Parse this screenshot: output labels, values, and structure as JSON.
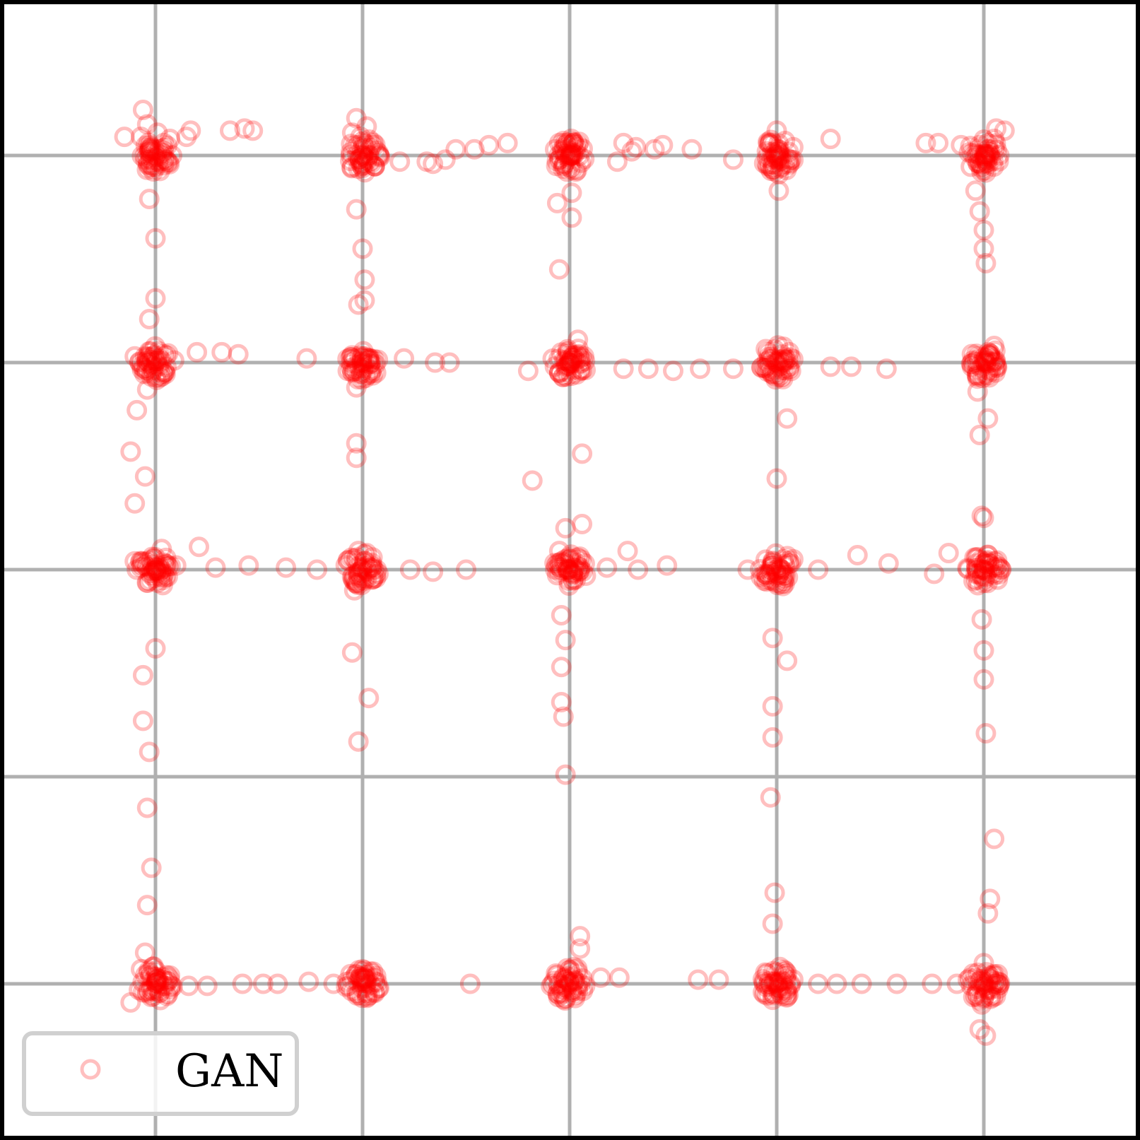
{
  "chart_data": {
    "type": "scatter",
    "title": "",
    "xlabel": "",
    "ylabel": "",
    "xlim": [
      -3.75,
      3.75
    ],
    "ylim": [
      -3.75,
      3.75
    ],
    "grid": true,
    "grid_lines": [
      -3,
      -2,
      -1,
      0,
      1,
      2,
      3
    ],
    "tick_labels_shown": false,
    "legend": {
      "placement": "bottom-left",
      "entries": [
        "GAN"
      ]
    },
    "series": [
      {
        "name": "GAN",
        "color": "#ff0000",
        "marker": "hollow-circle",
        "cluster_centers": [
          [
            -2,
            2
          ],
          [
            -1,
            2
          ],
          [
            0,
            2
          ],
          [
            1,
            2
          ],
          [
            2,
            2
          ],
          [
            -2,
            1
          ],
          [
            -1,
            1
          ],
          [
            0,
            1
          ],
          [
            1,
            1
          ],
          [
            2,
            1
          ],
          [
            -2,
            0
          ],
          [
            -1,
            0
          ],
          [
            0,
            0
          ],
          [
            1,
            0
          ],
          [
            2,
            0
          ],
          [
            -2,
            -2
          ],
          [
            -1,
            -2
          ],
          [
            0,
            -2
          ],
          [
            1,
            -2
          ],
          [
            2,
            -2
          ]
        ],
        "points": [
          [
            -2.07,
            2.09
          ],
          [
            -2.01,
            2.02
          ],
          [
            -1.96,
            2.06
          ],
          [
            -2.04,
            2.15
          ],
          [
            -1.93,
            2.08
          ],
          [
            -2.06,
            2.22
          ],
          [
            -1.99,
            2.11
          ],
          [
            -1.83,
            2.12
          ],
          [
            -1.64,
            2.12
          ],
          [
            -1.57,
            2.13
          ],
          [
            -1.53,
            2.12
          ],
          [
            -2.15,
            2.09
          ],
          [
            -1.85,
            2.09
          ],
          [
            -2.05,
            2.0
          ],
          [
            -1.02,
            2.05
          ],
          [
            -0.98,
            2.14
          ],
          [
            -1.0,
            1.94
          ],
          [
            -1.03,
            2.18
          ],
          [
            -0.97,
            2.0
          ],
          [
            -1.01,
            2.09
          ],
          [
            -1.05,
            2.11
          ],
          [
            -0.82,
            1.97
          ],
          [
            -0.69,
            1.97
          ],
          [
            -0.6,
            1.98
          ],
          [
            -0.55,
            2.03
          ],
          [
            -0.46,
            2.03
          ],
          [
            -0.39,
            2.05
          ],
          [
            -0.3,
            2.06
          ],
          [
            -0.66,
            1.96
          ],
          [
            -0.02,
            2.06
          ],
          [
            0.04,
            2.05
          ],
          [
            0.0,
            1.98
          ],
          [
            -0.03,
            2.07
          ],
          [
            0.03,
            2.04
          ],
          [
            0.01,
            2.0
          ],
          [
            -0.05,
            2.06
          ],
          [
            0.02,
            2.06
          ],
          [
            0.26,
            2.06
          ],
          [
            0.32,
            2.04
          ],
          [
            0.41,
            2.03
          ],
          [
            0.45,
            2.05
          ],
          [
            0.59,
            2.03
          ],
          [
            0.79,
            1.98
          ],
          [
            0.23,
            1.97
          ],
          [
            0.3,
            2.02
          ],
          [
            0.98,
            2.06
          ],
          [
            1.04,
            2.07
          ],
          [
            1.01,
            2.01
          ],
          [
            0.96,
            2.06
          ],
          [
            1.08,
            2.04
          ],
          [
            1.0,
            2.12
          ],
          [
            1.01,
            1.91
          ],
          [
            1.01,
            1.83
          ],
          [
            1.26,
            2.08
          ],
          [
            1.72,
            2.06
          ],
          [
            1.78,
            2.06
          ],
          [
            1.89,
            2.05
          ],
          [
            1.98,
            2.05
          ],
          [
            2.02,
            2.03
          ],
          [
            2.05,
            2.08
          ],
          [
            2.1,
            2.12
          ],
          [
            1.98,
            1.96
          ],
          [
            1.96,
            1.83
          ],
          [
            1.98,
            1.73
          ],
          [
            2.0,
            1.64
          ],
          [
            2.0,
            1.55
          ],
          [
            2.01,
            1.48
          ],
          [
            2.06,
            2.13
          ],
          [
            -2.03,
            1.79
          ],
          [
            -2.0,
            1.6
          ],
          [
            -2.0,
            1.31
          ],
          [
            -2.03,
            1.21
          ],
          [
            -1.03,
            1.74
          ],
          [
            -1.0,
            1.55
          ],
          [
            -0.99,
            1.4
          ],
          [
            -0.99,
            1.3
          ],
          [
            -1.02,
            1.28
          ],
          [
            0.01,
            1.82
          ],
          [
            -0.06,
            1.77
          ],
          [
            0.01,
            1.7
          ],
          [
            -0.05,
            1.45
          ],
          [
            -2.05,
            1.03
          ],
          [
            -1.96,
            1.04
          ],
          [
            -2.02,
            0.95
          ],
          [
            -1.91,
            1.01
          ],
          [
            -2.1,
            1.03
          ],
          [
            -1.8,
            1.05
          ],
          [
            -1.68,
            1.05
          ],
          [
            -1.6,
            1.04
          ],
          [
            -1.27,
            1.02
          ],
          [
            -2.04,
            0.87
          ],
          [
            -2.09,
            0.77
          ],
          [
            -2.12,
            0.57
          ],
          [
            -2.05,
            0.45
          ],
          [
            -2.1,
            0.32
          ],
          [
            -1.0,
            1.03
          ],
          [
            -0.96,
            1.0
          ],
          [
            -1.04,
            1.02
          ],
          [
            -0.8,
            1.02
          ],
          [
            -0.65,
            1.0
          ],
          [
            -0.58,
            1.0
          ],
          [
            -1.03,
            0.88
          ],
          [
            -1.03,
            0.61
          ],
          [
            -1.03,
            0.54
          ],
          [
            0.01,
            1.02
          ],
          [
            -0.02,
            0.98
          ],
          [
            0.03,
            1.01
          ],
          [
            0.07,
            1.03
          ],
          [
            -0.05,
            0.95
          ],
          [
            -0.2,
            0.96
          ],
          [
            0.04,
            1.11
          ],
          [
            0.26,
            0.97
          ],
          [
            0.38,
            0.97
          ],
          [
            0.5,
            0.96
          ],
          [
            0.63,
            0.97
          ],
          [
            0.79,
            0.97
          ],
          [
            0.06,
            0.56
          ],
          [
            -0.18,
            0.43
          ],
          [
            1.01,
            0.98
          ],
          [
            0.97,
            0.96
          ],
          [
            1.04,
            1.01
          ],
          [
            1.06,
            1.05
          ],
          [
            1.03,
            0.92
          ],
          [
            1.05,
            0.73
          ],
          [
            1.0,
            0.44
          ],
          [
            1.26,
            0.98
          ],
          [
            1.36,
            0.98
          ],
          [
            2.01,
            1.02
          ],
          [
            1.97,
            0.99
          ],
          [
            2.03,
            1.03
          ],
          [
            2.05,
            1.08
          ],
          [
            1.53,
            0.97
          ],
          [
            1.97,
            0.86
          ],
          [
            2.02,
            0.73
          ],
          [
            1.98,
            0.65
          ],
          [
            1.99,
            0.26
          ],
          [
            -2.1,
            0.04
          ],
          [
            -2.05,
            0.02
          ],
          [
            -2.0,
            0.01
          ],
          [
            -2.09,
            0.0
          ],
          [
            -1.9,
            0.02
          ],
          [
            -1.71,
            0.01
          ],
          [
            -1.55,
            0.02
          ],
          [
            -1.37,
            0.01
          ],
          [
            -1.22,
            0.0
          ],
          [
            -1.97,
            0.1
          ],
          [
            -2.07,
            0.01
          ],
          [
            -1.96,
            -0.02
          ],
          [
            -1.79,
            0.11
          ],
          [
            -1.03,
            0.04
          ],
          [
            -1.02,
            0.09
          ],
          [
            -1.02,
            -0.01
          ],
          [
            -0.96,
            0.01
          ],
          [
            -0.77,
            0.0
          ],
          [
            -0.66,
            -0.01
          ],
          [
            -0.5,
            0.0
          ],
          [
            -1.04,
            -0.1
          ],
          [
            0.02,
            0.01
          ],
          [
            0.0,
            0.05
          ],
          [
            -0.05,
            0.09
          ],
          [
            0.05,
            0.0
          ],
          [
            0.18,
            0.01
          ],
          [
            0.33,
            0.0
          ],
          [
            0.47,
            0.02
          ],
          [
            0.28,
            0.09
          ],
          [
            0.06,
            0.22
          ],
          [
            -0.02,
            0.2
          ],
          [
            1.01,
            0.01
          ],
          [
            1.04,
            0.02
          ],
          [
            0.98,
            0.03
          ],
          [
            1.08,
            0.05
          ],
          [
            0.86,
            0.0
          ],
          [
            1.2,
            0.0
          ],
          [
            1.39,
            0.07
          ],
          [
            1.54,
            0.03
          ],
          [
            2.0,
            0.03
          ],
          [
            1.97,
            0.06
          ],
          [
            2.05,
            0.04
          ],
          [
            1.83,
            0.08
          ],
          [
            1.76,
            -0.02
          ],
          [
            2.0,
            0.25
          ],
          [
            -2.0,
            -0.38
          ],
          [
            -2.06,
            -0.51
          ],
          [
            -2.06,
            -0.73
          ],
          [
            -2.03,
            -0.88
          ],
          [
            -2.04,
            -1.15
          ],
          [
            -2.02,
            -1.44
          ],
          [
            -2.04,
            -1.62
          ],
          [
            -1.05,
            -0.4
          ],
          [
            -0.97,
            -0.62
          ],
          [
            -1.02,
            -0.83
          ],
          [
            -0.04,
            -0.22
          ],
          [
            -0.02,
            -0.34
          ],
          [
            -0.04,
            -0.47
          ],
          [
            -0.04,
            -0.64
          ],
          [
            -0.03,
            -0.71
          ],
          [
            -0.02,
            -0.99
          ],
          [
            0.98,
            -0.33
          ],
          [
            1.05,
            -0.44
          ],
          [
            0.98,
            -0.66
          ],
          [
            0.98,
            -0.81
          ],
          [
            0.97,
            -1.1
          ],
          [
            0.99,
            -1.56
          ],
          [
            0.98,
            -1.71
          ],
          [
            1.99,
            -0.24
          ],
          [
            2.0,
            -0.39
          ],
          [
            2.0,
            -0.53
          ],
          [
            2.01,
            -0.79
          ],
          [
            2.05,
            -1.3
          ],
          [
            2.03,
            -1.59
          ],
          [
            2.02,
            -1.66
          ],
          [
            -2.02,
            -2.03
          ],
          [
            -1.96,
            -2.01
          ],
          [
            -2.08,
            -2.03
          ],
          [
            -1.94,
            -1.99
          ],
          [
            -1.84,
            -2.01
          ],
          [
            -1.75,
            -2.01
          ],
          [
            -1.58,
            -2.0
          ],
          [
            -1.48,
            -2.0
          ],
          [
            -1.41,
            -2.0
          ],
          [
            -2.07,
            -1.93
          ],
          [
            -2.05,
            -1.85
          ],
          [
            -2.12,
            -2.09
          ],
          [
            -1.05,
            -1.98
          ],
          [
            -0.98,
            -2.0
          ],
          [
            -1.07,
            -2.01
          ],
          [
            -0.94,
            -1.99
          ],
          [
            -1.0,
            -1.93
          ],
          [
            -1.14,
            -2.0
          ],
          [
            -1.26,
            -1.99
          ],
          [
            -0.48,
            -2.0
          ],
          [
            0.0,
            -2.0
          ],
          [
            -0.03,
            -2.01
          ],
          [
            0.02,
            -1.99
          ],
          [
            -0.09,
            -2.01
          ],
          [
            0.15,
            -1.97
          ],
          [
            0.24,
            -1.97
          ],
          [
            0.05,
            -1.83
          ],
          [
            0.05,
            -1.77
          ],
          [
            0.02,
            -1.92
          ],
          [
            0.99,
            -1.99
          ],
          [
            0.96,
            -2.0
          ],
          [
            1.03,
            -1.99
          ],
          [
            1.08,
            -1.98
          ],
          [
            1.2,
            -2.0
          ],
          [
            1.29,
            -2.0
          ],
          [
            1.41,
            -2.0
          ],
          [
            1.58,
            -2.0
          ],
          [
            0.62,
            -1.98
          ],
          [
            0.72,
            -1.98
          ],
          [
            1.05,
            -1.95
          ],
          [
            2.0,
            -1.99
          ],
          [
            1.97,
            -1.99
          ],
          [
            2.05,
            -2.0
          ],
          [
            2.0,
            -1.9
          ],
          [
            1.87,
            -2.0
          ],
          [
            1.99,
            -2.1
          ],
          [
            1.98,
            -2.22
          ],
          [
            2.01,
            -2.25
          ],
          [
            1.75,
            -2.0
          ]
        ]
      }
    ]
  }
}
